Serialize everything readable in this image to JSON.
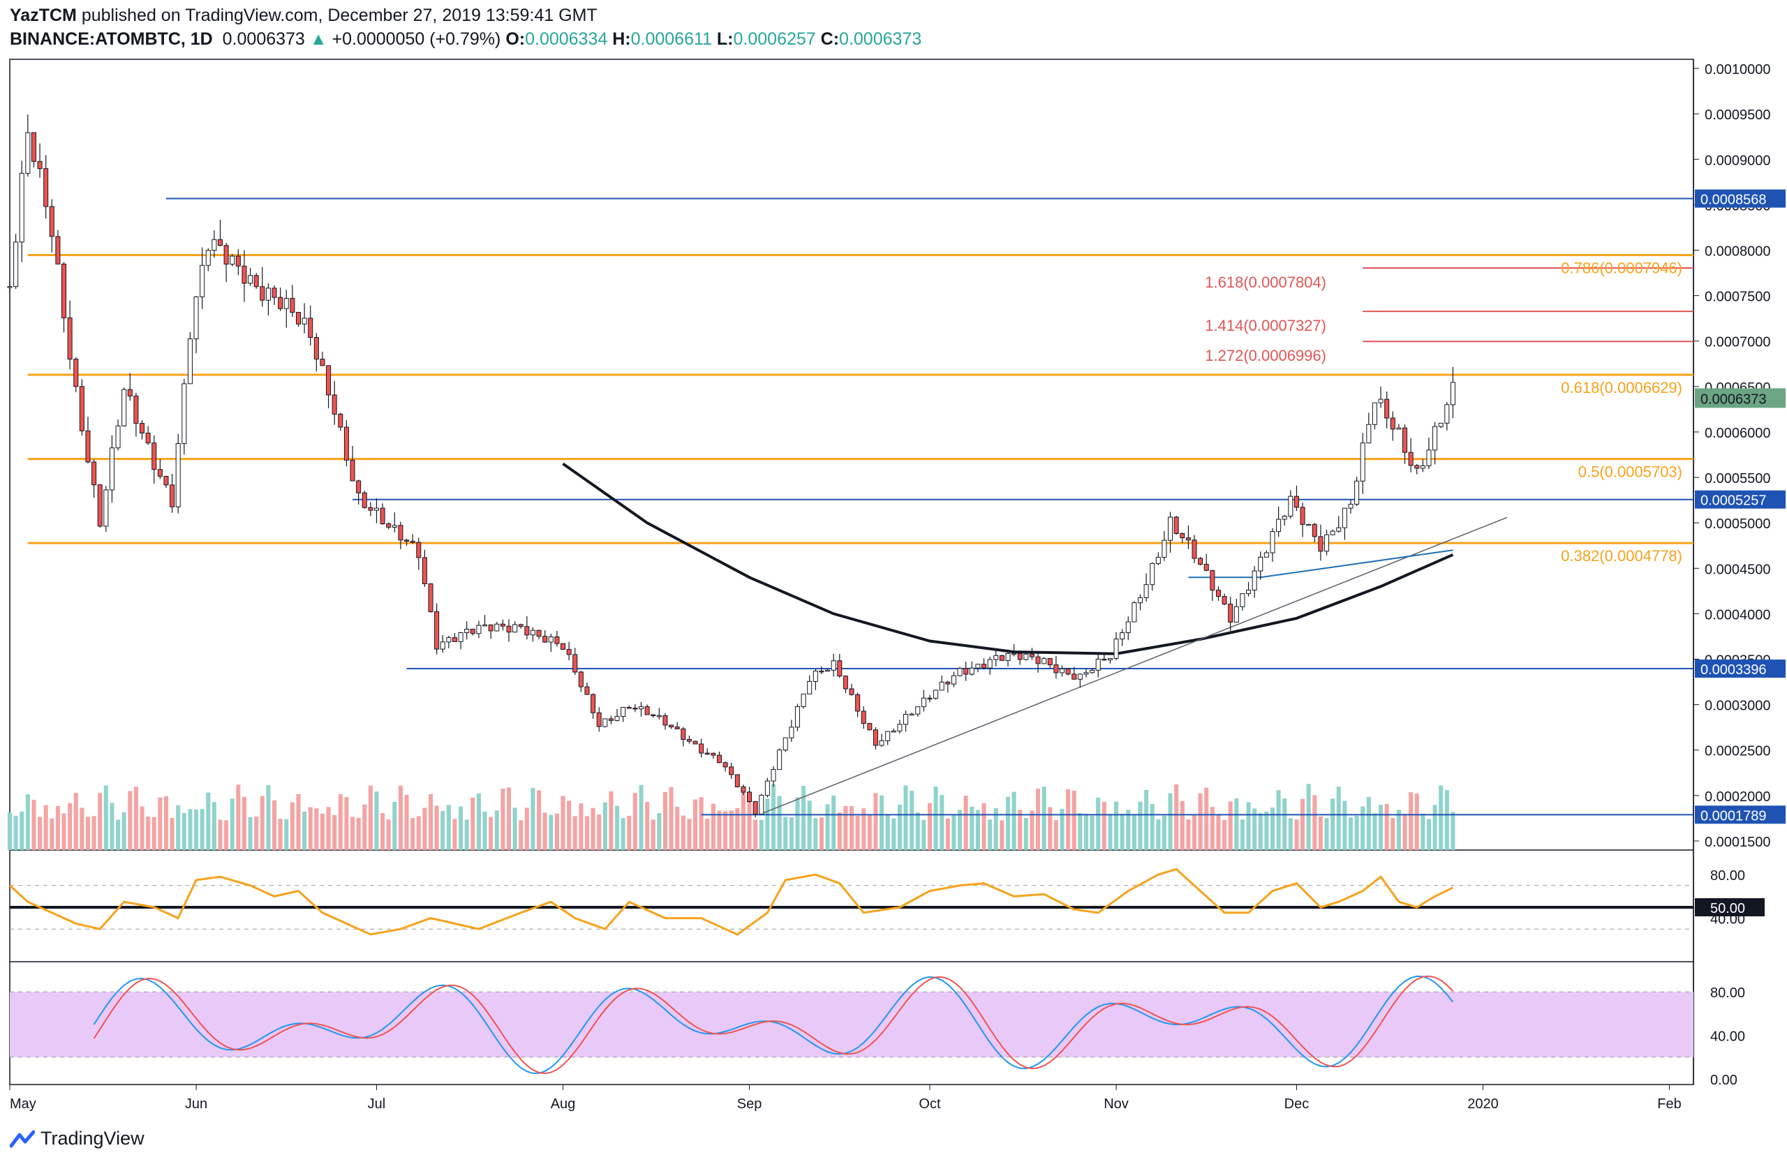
{
  "header": {
    "author": "YazTCM",
    "published_text": "published on TradingView.com, December 27, 2019 13:59:41 GMT",
    "symbol": "BINANCE:ATOMBTC, 1D",
    "last": "0.0006373",
    "change": "+0.0000050 (+0.79%)",
    "o_label": "O:",
    "o": "0.0006334",
    "h_label": "H:",
    "h": "0.0006611",
    "l_label": "L:",
    "l": "0.0006257",
    "c_label": "C:",
    "c": "0.0006373"
  },
  "footer": {
    "brand": "TradingView",
    "logo_icon": "tradingview-logo-icon"
  },
  "colors": {
    "up": "#26a69a",
    "down": "#ef5350",
    "vol_up": "#8fd3cc",
    "vol_down": "#f5a3a3",
    "blue_level": "#1e53b4",
    "orange_level": "#f7a21b",
    "red_level": "#e05555",
    "rsi": "#f7a21b",
    "stoch_k": "#2196f3",
    "stoch_d": "#ef5350",
    "stoch_band": "#e8c9f7"
  },
  "chart_data": [
    {
      "type": "candlestick",
      "title": "BINANCE:ATOMBTC, 1D",
      "ylim": [
        0.00014,
        0.00101
      ],
      "y_ticks": [
        "0.0010000",
        "0.0009500",
        "0.0009000",
        "0.0008500",
        "0.0008000",
        "0.0007500",
        "0.0007000",
        "0.0006500",
        "0.0006000",
        "0.0005500",
        "0.0005000",
        "0.0004500",
        "0.0004000",
        "0.0003500",
        "0.0003000",
        "0.0002500",
        "0.0002000",
        "0.0001500"
      ],
      "x_ticks": [
        "May",
        "Jun",
        "Jul",
        "Aug",
        "Sep",
        "Oct",
        "Nov",
        "Dec",
        "2020",
        "Feb"
      ],
      "x_range": [
        "2019-05-01",
        "2020-02-05"
      ],
      "last_price": "0.0006373",
      "anchors": [
        [
          "2019-05-01",
          0.00076
        ],
        [
          "2019-05-04",
          0.00092
        ],
        [
          "2019-05-08",
          0.00082
        ],
        [
          "2019-05-12",
          0.00065
        ],
        [
          "2019-05-16",
          0.0005
        ],
        [
          "2019-05-20",
          0.00064
        ],
        [
          "2019-05-25",
          0.00057
        ],
        [
          "2019-05-28",
          0.00053
        ],
        [
          "2019-05-31",
          0.00071
        ],
        [
          "2019-06-03",
          0.0008
        ],
        [
          "2019-06-09",
          0.00078
        ],
        [
          "2019-06-14",
          0.00075
        ],
        [
          "2019-06-20",
          0.0007
        ],
        [
          "2019-06-24",
          0.00063
        ],
        [
          "2019-06-28",
          0.00053
        ],
        [
          "2019-07-03",
          0.00049
        ],
        [
          "2019-07-08",
          0.00047
        ],
        [
          "2019-07-11",
          0.00037
        ],
        [
          "2019-07-18",
          0.00038
        ],
        [
          "2019-07-25",
          0.00039
        ],
        [
          "2019-08-01",
          0.00036
        ],
        [
          "2019-08-07",
          0.00028
        ],
        [
          "2019-08-12",
          0.0003
        ],
        [
          "2019-08-20",
          0.00027
        ],
        [
          "2019-08-27",
          0.00024
        ],
        [
          "2019-09-02",
          0.00018
        ],
        [
          "2019-09-06",
          0.00025
        ],
        [
          "2019-09-11",
          0.00033
        ],
        [
          "2019-09-15",
          0.00034
        ],
        [
          "2019-09-22",
          0.00026
        ],
        [
          "2019-09-30",
          0.0003
        ],
        [
          "2019-10-06",
          0.00034
        ],
        [
          "2019-10-12",
          0.00035
        ],
        [
          "2019-10-20",
          0.00035
        ],
        [
          "2019-10-26",
          0.00033
        ],
        [
          "2019-10-31",
          0.00035
        ],
        [
          "2019-11-06",
          0.00044
        ],
        [
          "2019-11-10",
          0.0005
        ],
        [
          "2019-11-14",
          0.00046
        ],
        [
          "2019-11-20",
          0.0004
        ],
        [
          "2019-11-26",
          0.00047
        ],
        [
          "2019-11-30",
          0.00052
        ],
        [
          "2019-12-05",
          0.00048
        ],
        [
          "2019-12-10",
          0.00052
        ],
        [
          "2019-12-14",
          0.00063
        ],
        [
          "2019-12-18",
          0.0006
        ],
        [
          "2019-12-21",
          0.00056
        ],
        [
          "2019-12-24",
          0.0006
        ],
        [
          "2019-12-27",
          0.00064
        ]
      ],
      "horizontal_levels": [
        {
          "price": 0.0008568,
          "color": "blue",
          "label": "0.0008568",
          "from": "2019-05-27"
        },
        {
          "price": 0.0007946,
          "color": "orange",
          "label": "0.786(0.0007946)",
          "from": "2019-05-04",
          "label_in_price_axis": false
        },
        {
          "price": 0.0007804,
          "color": "red",
          "label": "1.618(0.0007804)",
          "from": "2019-12-12"
        },
        {
          "price": 0.0007327,
          "color": "red",
          "label": "1.414(0.0007327)",
          "from": "2019-12-12"
        },
        {
          "price": 0.0006996,
          "color": "red",
          "label": "1.272(0.0006996)",
          "from": "2019-12-12"
        },
        {
          "price": 0.0006629,
          "color": "orange",
          "label": "0.618(0.0006629)",
          "from": "2019-05-04"
        },
        {
          "price": 0.0005703,
          "color": "orange",
          "label": "0.5(0.0005703)",
          "from": "2019-05-04"
        },
        {
          "price": 0.0005257,
          "color": "blue",
          "label": "0.0005257",
          "from": "2019-06-27"
        },
        {
          "price": 0.0004778,
          "color": "orange",
          "label": "0.382(0.0004778)",
          "from": "2019-05-04"
        },
        {
          "price": 0.0003396,
          "color": "blue",
          "label": "0.0003396",
          "from": "2019-07-06"
        },
        {
          "price": 0.0001789,
          "color": "blue",
          "label": "0.0001789",
          "from": "2019-08-24"
        }
      ],
      "fib_labels": [
        {
          "text": "0.786(0.0007946)",
          "color": "orange"
        },
        {
          "text": "1.618(0.0007804)",
          "color": "red"
        },
        {
          "text": "1.414(0.0007327)",
          "color": "red"
        },
        {
          "text": "1.272(0.0006996)",
          "color": "red"
        },
        {
          "text": "0.618(0.0006629)",
          "color": "orange"
        },
        {
          "text": "0.5(0.0005703)",
          "color": "orange"
        },
        {
          "text": "0.382(0.0004778)",
          "color": "orange"
        }
      ],
      "moving_average": [
        [
          "2019-08-01",
          0.000565
        ],
        [
          "2019-08-15",
          0.0005
        ],
        [
          "2019-09-01",
          0.00044
        ],
        [
          "2019-09-15",
          0.0004
        ],
        [
          "2019-10-01",
          0.00037
        ],
        [
          "2019-10-15",
          0.000358
        ],
        [
          "2019-11-01",
          0.000356
        ],
        [
          "2019-11-15",
          0.000372
        ],
        [
          "2019-12-01",
          0.000395
        ],
        [
          "2019-12-15",
          0.00043
        ],
        [
          "2019-12-27",
          0.000465
        ]
      ],
      "trendline": [
        [
          "2019-09-03",
          0.00018
        ],
        [
          "2020-01-05",
          0.000506
        ]
      ],
      "channel_line": [
        [
          "2019-11-13",
          0.00044
        ],
        [
          "2019-11-25",
          0.00044
        ],
        [
          "2019-12-27",
          0.00047
        ]
      ]
    },
    {
      "type": "line",
      "name": "RSI",
      "ylim": [
        0,
        100
      ],
      "y_ticks": [
        "80.00",
        "40.00"
      ],
      "level_label": "50.00",
      "values": [
        [
          "2019-05-01",
          70
        ],
        [
          "2019-05-04",
          55
        ],
        [
          "2019-05-08",
          45
        ],
        [
          "2019-05-12",
          35
        ],
        [
          "2019-05-16",
          30
        ],
        [
          "2019-05-20",
          55
        ],
        [
          "2019-05-25",
          50
        ],
        [
          "2019-05-29",
          40
        ],
        [
          "2019-06-01",
          75
        ],
        [
          "2019-06-05",
          78
        ],
        [
          "2019-06-10",
          70
        ],
        [
          "2019-06-14",
          60
        ],
        [
          "2019-06-18",
          65
        ],
        [
          "2019-06-22",
          45
        ],
        [
          "2019-06-26",
          35
        ],
        [
          "2019-06-30",
          25
        ],
        [
          "2019-07-05",
          30
        ],
        [
          "2019-07-10",
          40
        ],
        [
          "2019-07-14",
          35
        ],
        [
          "2019-07-18",
          30
        ],
        [
          "2019-07-25",
          45
        ],
        [
          "2019-07-30",
          55
        ],
        [
          "2019-08-03",
          40
        ],
        [
          "2019-08-08",
          30
        ],
        [
          "2019-08-12",
          55
        ],
        [
          "2019-08-18",
          40
        ],
        [
          "2019-08-24",
          40
        ],
        [
          "2019-08-30",
          25
        ],
        [
          "2019-09-04",
          45
        ],
        [
          "2019-09-07",
          75
        ],
        [
          "2019-09-12",
          80
        ],
        [
          "2019-09-16",
          72
        ],
        [
          "2019-09-20",
          45
        ],
        [
          "2019-09-26",
          50
        ],
        [
          "2019-10-01",
          65
        ],
        [
          "2019-10-06",
          70
        ],
        [
          "2019-10-10",
          72
        ],
        [
          "2019-10-15",
          60
        ],
        [
          "2019-10-20",
          62
        ],
        [
          "2019-10-25",
          48
        ],
        [
          "2019-10-29",
          45
        ],
        [
          "2019-11-03",
          65
        ],
        [
          "2019-11-08",
          80
        ],
        [
          "2019-11-11",
          85
        ],
        [
          "2019-11-15",
          65
        ],
        [
          "2019-11-19",
          45
        ],
        [
          "2019-11-23",
          45
        ],
        [
          "2019-11-27",
          65
        ],
        [
          "2019-12-01",
          72
        ],
        [
          "2019-12-05",
          50
        ],
        [
          "2019-12-08",
          55
        ],
        [
          "2019-12-12",
          65
        ],
        [
          "2019-12-15",
          78
        ],
        [
          "2019-12-18",
          55
        ],
        [
          "2019-12-21",
          50
        ],
        [
          "2019-12-24",
          60
        ],
        [
          "2019-12-27",
          68
        ]
      ]
    },
    {
      "type": "line",
      "name": "Stoch RSI",
      "ylim": [
        0,
        100
      ],
      "y_ticks": [
        "80.00",
        "40.00",
        "0.00"
      ]
    }
  ]
}
